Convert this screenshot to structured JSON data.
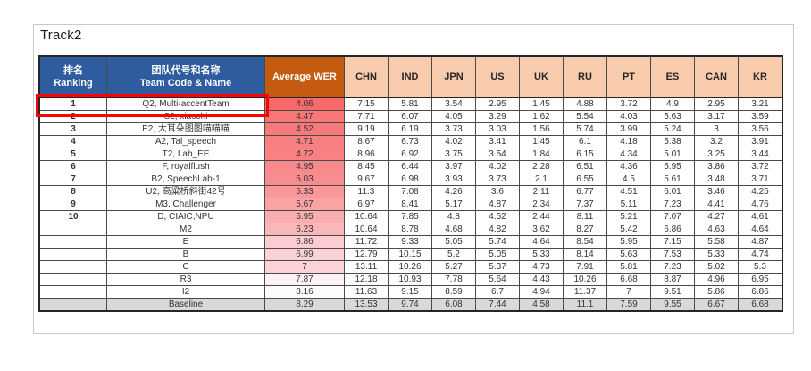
{
  "title": "Track2",
  "colors": {
    "header_blue": "#2e5c9e",
    "header_orange": "#c55a11",
    "header_peach": "#f8cbad",
    "baseline_gray": "#d9d9d9",
    "highlight_red": "#ff0000",
    "frame_gray": "#c9c9c9",
    "avg_wer_scale": {
      "min_value": 4.06,
      "max_value": 8.16,
      "min_color": "#f8696b",
      "max_color": "#fcfcff"
    }
  },
  "table": {
    "headers": {
      "rank_zh": "排名",
      "rank_en": "Ranking",
      "team_zh": "团队代号和名称",
      "team_en": "Team Code & Name",
      "avg_wer": "Average WER",
      "countries": [
        "CHN",
        "IND",
        "JPN",
        "US",
        "UK",
        "RU",
        "PT",
        "ES",
        "CAN",
        "KR"
      ]
    },
    "rows": [
      {
        "rank": "1",
        "team": "Q2, Multi-accentTeam",
        "avg": "4.06",
        "values": [
          "7.15",
          "5.81",
          "3.54",
          "2.95",
          "1.45",
          "4.88",
          "3.72",
          "4.9",
          "2.95",
          "3.21"
        ],
        "highlighted": true,
        "baseline": false
      },
      {
        "rank": "2",
        "team": "S2, xiaochi",
        "avg": "4.47",
        "values": [
          "7.71",
          "6.07",
          "4.05",
          "3.29",
          "1.62",
          "5.54",
          "4.03",
          "5.63",
          "3.17",
          "3.59"
        ],
        "highlighted": false,
        "baseline": false
      },
      {
        "rank": "3",
        "team": "E2, 大耳朵图图喵喵喵",
        "avg": "4.52",
        "values": [
          "9.19",
          "6.19",
          "3.73",
          "3.03",
          "1.56",
          "5.74",
          "3.99",
          "5.24",
          "3",
          "3.56"
        ],
        "highlighted": false,
        "baseline": false
      },
      {
        "rank": "4",
        "team": "A2, Tal_speech",
        "avg": "4.71",
        "values": [
          "8.67",
          "6.73",
          "4.02",
          "3.41",
          "1.45",
          "6.1",
          "4.18",
          "5.38",
          "3.2",
          "3.91"
        ],
        "highlighted": false,
        "baseline": false
      },
      {
        "rank": "5",
        "team": "T2, Lab_EE",
        "avg": "4.72",
        "values": [
          "8.96",
          "6.92",
          "3.75",
          "3.54",
          "1.84",
          "6.15",
          "4.34",
          "5.01",
          "3.25",
          "3.44"
        ],
        "highlighted": false,
        "baseline": false
      },
      {
        "rank": "6",
        "team": "F, royalflush",
        "avg": "4.95",
        "values": [
          "8.45",
          "6.44",
          "3.97",
          "4.02",
          "2.28",
          "6.51",
          "4.36",
          "5.95",
          "3.86",
          "3.72"
        ],
        "highlighted": false,
        "baseline": false
      },
      {
        "rank": "7",
        "team": "B2, SpeechLab-1",
        "avg": "5.03",
        "values": [
          "9.67",
          "6.98",
          "3.93",
          "3.73",
          "2.1",
          "6.55",
          "4.5",
          "5.61",
          "3.48",
          "3.71"
        ],
        "highlighted": false,
        "baseline": false
      },
      {
        "rank": "8",
        "team": "U2, 高粱桥斜街42号",
        "avg": "5.33",
        "values": [
          "11.3",
          "7.08",
          "4.26",
          "3.6",
          "2.11",
          "6.77",
          "4.51",
          "6.01",
          "3.46",
          "4.25"
        ],
        "highlighted": false,
        "baseline": false
      },
      {
        "rank": "9",
        "team": "M3, Challenger",
        "avg": "5.67",
        "values": [
          "6.97",
          "8.41",
          "5.17",
          "4.87",
          "2.34",
          "7.37",
          "5.11",
          "7.23",
          "4.41",
          "4.76"
        ],
        "highlighted": false,
        "baseline": false
      },
      {
        "rank": "10",
        "team": "D, CIAIC,NPU",
        "avg": "5.95",
        "values": [
          "10.64",
          "7.85",
          "4.8",
          "4.52",
          "2.44",
          "8.11",
          "5.21",
          "7.07",
          "4.27",
          "4.61"
        ],
        "highlighted": false,
        "baseline": false
      },
      {
        "rank": "",
        "team": "M2",
        "avg": "6.23",
        "values": [
          "10.64",
          "8.78",
          "4.68",
          "4.82",
          "3.62",
          "8.27",
          "5.42",
          "6.86",
          "4.63",
          "4.64"
        ],
        "highlighted": false,
        "baseline": false
      },
      {
        "rank": "",
        "team": "E",
        "avg": "6.86",
        "values": [
          "11.72",
          "9.33",
          "5.05",
          "5.74",
          "4.64",
          "8.54",
          "5.95",
          "7.15",
          "5.58",
          "4.87"
        ],
        "highlighted": false,
        "baseline": false
      },
      {
        "rank": "",
        "team": "B",
        "avg": "6.99",
        "values": [
          "12.79",
          "10.15",
          "5.2",
          "5.05",
          "5.33",
          "8.14",
          "5.63",
          "7.53",
          "5.33",
          "4.74"
        ],
        "highlighted": false,
        "baseline": false
      },
      {
        "rank": "",
        "team": "C",
        "avg": "7",
        "values": [
          "13.11",
          "10.26",
          "5.27",
          "5.37",
          "4.73",
          "7.91",
          "5.81",
          "7.23",
          "5.02",
          "5.3"
        ],
        "highlighted": false,
        "baseline": false
      },
      {
        "rank": "",
        "team": "R3",
        "avg": "7.87",
        "values": [
          "12.18",
          "10.93",
          "7.78",
          "5.64",
          "4.43",
          "10.26",
          "6.68",
          "8.87",
          "4.96",
          "6.95"
        ],
        "highlighted": false,
        "baseline": false
      },
      {
        "rank": "",
        "team": "I2",
        "avg": "8.16",
        "values": [
          "11.63",
          "9.15",
          "8.59",
          "6.7",
          "4.94",
          "11.37",
          "7",
          "9.51",
          "5.86",
          "6.86"
        ],
        "highlighted": false,
        "baseline": false
      },
      {
        "rank": "",
        "team": "Baseline",
        "avg": "8.29",
        "values": [
          "13.53",
          "9.74",
          "6.08",
          "7.44",
          "4.58",
          "11.1",
          "7.59",
          "9.55",
          "6.67",
          "6.68"
        ],
        "highlighted": false,
        "baseline": true
      }
    ]
  }
}
